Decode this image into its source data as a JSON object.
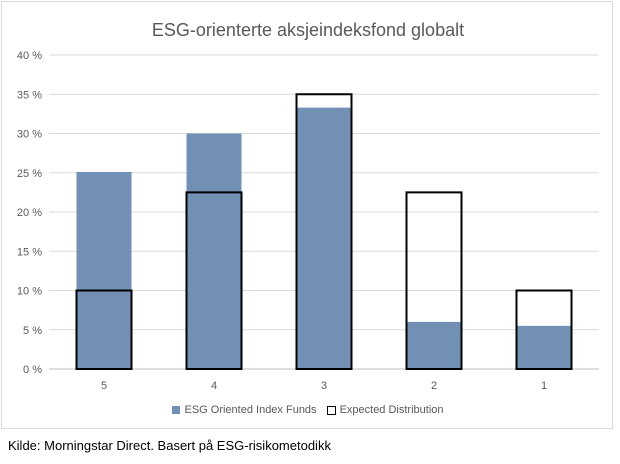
{
  "colors": {
    "esg_fill": "#7290b4",
    "expected_stroke": "#000000",
    "grid": "#d9d9d9",
    "text": "#595959"
  },
  "chart_data": {
    "type": "bar",
    "title": "ESG-orienterte aksjeindeksfond  globalt",
    "categories": [
      "5",
      "4",
      "3",
      "2",
      "1"
    ],
    "series": [
      {
        "name": "ESG Oriented Index Funds",
        "style": "filled",
        "values": [
          25.1,
          30.0,
          33.3,
          6.0,
          5.5
        ]
      },
      {
        "name": "Expected Distribution",
        "style": "outline",
        "values": [
          10.0,
          22.5,
          35.0,
          22.5,
          10.0
        ]
      }
    ],
    "ylim": [
      0,
      40
    ],
    "yticks": [
      "0 %",
      "5 %",
      "10 %",
      "15 %",
      "20 %",
      "25 %",
      "30 %",
      "35 %",
      "40 %"
    ],
    "grid": true,
    "legend_position": "bottom"
  },
  "source": "Kilde: Morningstar Direct. Basert på ESG-risikometodikk"
}
